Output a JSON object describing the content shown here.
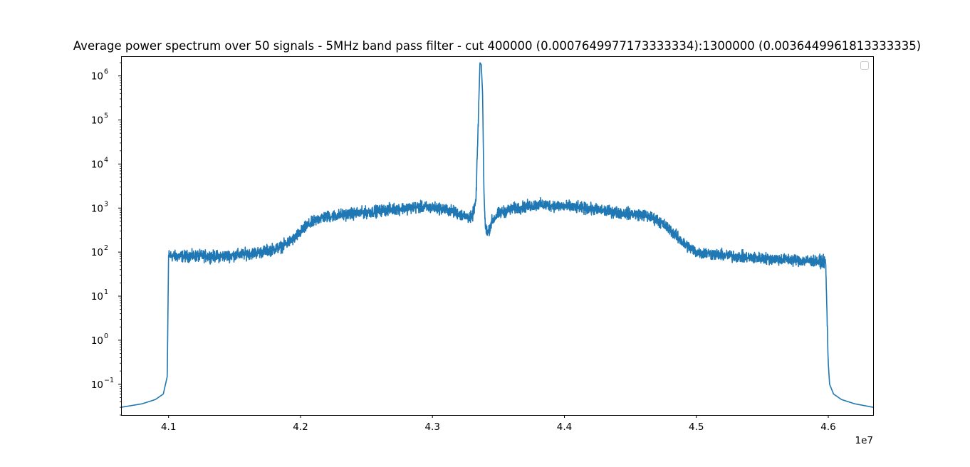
{
  "chart_data": {
    "type": "line",
    "title": "Average power spectrum over 50 signals - 5MHz band pass filter - cut 400000 (0.0007649977173333334):1300000 (0.0036449961813333335)",
    "xlabel": "",
    "ylabel": "",
    "x_offset_label": "1e7",
    "xscale": "linear",
    "yscale": "log",
    "xlim": [
      40.64,
      46.34
    ],
    "ylim": [
      0.02,
      2800000
    ],
    "x_ticks": [
      41.0,
      42.0,
      43.0,
      44.0,
      45.0,
      46.0
    ],
    "x_tick_labels": [
      "4.1",
      "4.2",
      "4.3",
      "4.4",
      "4.5",
      "4.6"
    ],
    "y_ticks": [
      {
        "value": 0.1,
        "base": "10",
        "exp": "−1"
      },
      {
        "value": 1,
        "base": "10",
        "exp": "0"
      },
      {
        "value": 10,
        "base": "10",
        "exp": "1"
      },
      {
        "value": 100,
        "base": "10",
        "exp": "2"
      },
      {
        "value": 1000,
        "base": "10",
        "exp": "3"
      },
      {
        "value": 10000,
        "base": "10",
        "exp": "4"
      },
      {
        "value": 100000,
        "base": "10",
        "exp": "5"
      },
      {
        "value": 1000000,
        "base": "10",
        "exp": "6"
      }
    ],
    "grid": false,
    "legend": {
      "position": "upper right",
      "entries": []
    },
    "series": [
      {
        "color": "#1f77b4",
        "x": [
          40.64,
          40.8,
          40.9,
          40.96,
          40.99,
          41.0,
          41.05,
          41.2,
          41.4,
          41.5,
          41.7,
          41.85,
          41.95,
          42.05,
          42.15,
          42.3,
          42.5,
          42.7,
          42.9,
          43.05,
          43.15,
          43.25,
          43.3,
          43.33,
          43.36,
          43.37,
          43.38,
          43.39,
          43.4,
          43.42,
          43.45,
          43.5,
          43.6,
          43.8,
          44.0,
          44.2,
          44.4,
          44.6,
          44.7,
          44.8,
          44.9,
          45.0,
          45.2,
          45.4,
          45.6,
          45.8,
          45.98,
          46.0,
          46.01,
          46.04,
          46.1,
          46.2,
          46.34
        ],
        "y": [
          0.03,
          0.036,
          0.045,
          0.06,
          0.15,
          85,
          80,
          82,
          80,
          85,
          100,
          130,
          200,
          400,
          600,
          700,
          800,
          950,
          1050,
          1000,
          850,
          650,
          600,
          1500,
          2000000,
          1800000,
          400000,
          2500,
          380,
          270,
          500,
          750,
          950,
          1200,
          1100,
          950,
          800,
          700,
          550,
          330,
          160,
          100,
          85,
          75,
          70,
          65,
          60,
          0.3,
          0.1,
          0.06,
          0.045,
          0.036,
          0.03
        ],
        "noise_band_multiplier": 1.55
      }
    ]
  }
}
